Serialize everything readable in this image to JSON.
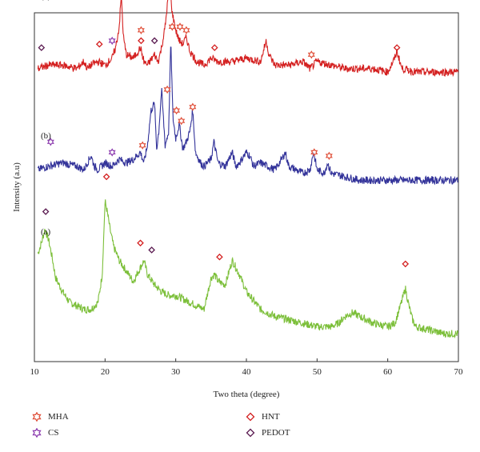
{
  "chart_data": {
    "type": "line",
    "xlabel": "Two theta (degree)",
    "ylabel": "Intensity (a.u)",
    "xlim": [
      10,
      70
    ],
    "xticks": [
      "10",
      "20",
      "30",
      "40",
      "50",
      "60",
      "70"
    ],
    "grid": false,
    "legend_position": "bottom",
    "series": [
      {
        "name": "(a)",
        "color": "#7cbf3a",
        "x": [
          10.5,
          11,
          11.5,
          12,
          12.5,
          13,
          14,
          15,
          16,
          17,
          18,
          19,
          19.6,
          20,
          20.3,
          20.7,
          21.2,
          22,
          23,
          24,
          25,
          25.5,
          26,
          27,
          28,
          29,
          30,
          31,
          32,
          33,
          34,
          35,
          35.5,
          36,
          37,
          38,
          39,
          40,
          42,
          44,
          46,
          48,
          50,
          52,
          53,
          54,
          55,
          56,
          58,
          60,
          61,
          61.8,
          62.5,
          63,
          63.5,
          64,
          66,
          68,
          70
        ],
        "y": [
          0.31,
          0.34,
          0.38,
          0.35,
          0.3,
          0.24,
          0.2,
          0.17,
          0.16,
          0.15,
          0.15,
          0.17,
          0.25,
          0.46,
          0.43,
          0.38,
          0.33,
          0.29,
          0.26,
          0.23,
          0.27,
          0.29,
          0.25,
          0.22,
          0.2,
          0.19,
          0.19,
          0.18,
          0.17,
          0.16,
          0.15,
          0.24,
          0.25,
          0.23,
          0.22,
          0.29,
          0.25,
          0.2,
          0.15,
          0.13,
          0.12,
          0.11,
          0.1,
          0.1,
          0.11,
          0.13,
          0.14,
          0.13,
          0.11,
          0.1,
          0.11,
          0.16,
          0.21,
          0.16,
          0.12,
          0.1,
          0.09,
          0.08,
          0.08
        ]
      },
      {
        "name": "(b)",
        "color": "#33339a",
        "x": [
          10.5,
          12,
          14,
          16,
          17,
          18,
          18.5,
          19,
          20,
          21,
          22,
          23,
          24,
          25,
          25.5,
          26,
          26.5,
          27,
          27.3,
          27.6,
          28,
          28.5,
          29,
          29.3,
          29.6,
          30,
          30.5,
          31,
          31.5,
          32,
          32.4,
          32.8,
          33.5,
          34,
          35,
          35.4,
          36,
          37,
          38,
          38.5,
          39,
          40,
          40.5,
          41,
          42,
          43,
          44,
          45,
          45.5,
          46,
          47,
          48,
          49,
          49.5,
          50,
          51,
          51.5,
          52,
          54,
          56,
          58,
          60,
          62,
          64,
          66,
          68,
          70
        ],
        "y": [
          0.55,
          0.56,
          0.57,
          0.56,
          0.55,
          0.59,
          0.56,
          0.55,
          0.57,
          0.56,
          0.58,
          0.57,
          0.58,
          0.6,
          0.57,
          0.62,
          0.72,
          0.74,
          0.61,
          0.66,
          0.78,
          0.62,
          0.66,
          0.92,
          0.7,
          0.64,
          0.68,
          0.61,
          0.63,
          0.66,
          0.72,
          0.6,
          0.57,
          0.56,
          0.58,
          0.63,
          0.57,
          0.56,
          0.6,
          0.56,
          0.57,
          0.6,
          0.59,
          0.56,
          0.57,
          0.56,
          0.55,
          0.58,
          0.6,
          0.56,
          0.55,
          0.54,
          0.55,
          0.6,
          0.55,
          0.54,
          0.57,
          0.54,
          0.53,
          0.52,
          0.52,
          0.52,
          0.52,
          0.52,
          0.52,
          0.52,
          0.52
        ]
      },
      {
        "name": "(c)",
        "color": "#d42020",
        "x": [
          10.5,
          12,
          14,
          16,
          17,
          17.5,
          18,
          19,
          20,
          21,
          21.5,
          22,
          22.3,
          22.6,
          23,
          24,
          25,
          25.5,
          26,
          27,
          27.5,
          28,
          28.5,
          29,
          29.2,
          29.5,
          30,
          30.5,
          31,
          31.5,
          32,
          33,
          34,
          35,
          36,
          38,
          40,
          42,
          42.8,
          43.2,
          44,
          46,
          48,
          49,
          50,
          52,
          54,
          56,
          58,
          60,
          61,
          61.3,
          62,
          64,
          66,
          68,
          70
        ],
        "y": [
          0.84,
          0.85,
          0.85,
          0.84,
          0.86,
          0.84,
          0.85,
          0.86,
          0.85,
          0.87,
          0.9,
          0.96,
          1.05,
          0.93,
          0.88,
          0.87,
          0.9,
          0.86,
          0.85,
          0.88,
          0.86,
          0.9,
          0.96,
          1.06,
          1.07,
          1.0,
          0.95,
          0.92,
          0.91,
          0.93,
          0.89,
          0.86,
          0.85,
          0.87,
          0.86,
          0.86,
          0.87,
          0.86,
          0.92,
          0.88,
          0.85,
          0.85,
          0.86,
          0.84,
          0.86,
          0.85,
          0.84,
          0.84,
          0.84,
          0.83,
          0.87,
          0.89,
          0.84,
          0.83,
          0.83,
          0.83,
          0.83
        ]
      }
    ],
    "legend": [
      {
        "label": "MHA",
        "symbol": "star",
        "color": "#e0503a"
      },
      {
        "label": "CS",
        "symbol": "star",
        "color": "#8e3fb0"
      },
      {
        "label": "HNT",
        "symbol": "diamond",
        "color": "#d42020"
      },
      {
        "label": "PEDOT",
        "symbol": "diamond",
        "color": "#5a1a50"
      }
    ],
    "markers": [
      {
        "series": "(a)",
        "symbol": "diamond",
        "color": "#5a1a50",
        "x": 11.6,
        "y": 0.43
      },
      {
        "series": "(a)",
        "symbol": "diamond",
        "color": "#d42020",
        "x": 20.2,
        "y": 0.53
      },
      {
        "series": "(a)",
        "symbol": "diamond",
        "color": "#d42020",
        "x": 25.0,
        "y": 0.34
      },
      {
        "series": "(a)",
        "symbol": "diamond",
        "color": "#5a1a50",
        "x": 26.6,
        "y": 0.32
      },
      {
        "series": "(a)",
        "symbol": "diamond",
        "color": "#d42020",
        "x": 36.2,
        "y": 0.3
      },
      {
        "series": "(a)",
        "symbol": "diamond",
        "color": "#d42020",
        "x": 62.5,
        "y": 0.28
      },
      {
        "series": "(b)",
        "symbol": "star",
        "color": "#8e3fb0",
        "x": 12.3,
        "y": 0.63
      },
      {
        "series": "(b)",
        "symbol": "star",
        "color": "#8e3fb0",
        "x": 21.0,
        "y": 0.6
      },
      {
        "series": "(b)",
        "symbol": "star",
        "color": "#e0503a",
        "x": 25.3,
        "y": 0.62
      },
      {
        "series": "(b)",
        "symbol": "star",
        "color": "#e0503a",
        "x": 28.8,
        "y": 0.78
      },
      {
        "series": "(b)",
        "symbol": "star",
        "color": "#e0503a",
        "x": 29.5,
        "y": 0.96
      },
      {
        "series": "(b)",
        "symbol": "star",
        "color": "#e0503a",
        "x": 30.1,
        "y": 0.72
      },
      {
        "series": "(b)",
        "symbol": "star",
        "color": "#e0503a",
        "x": 30.8,
        "y": 0.69
      },
      {
        "series": "(b)",
        "symbol": "star",
        "color": "#e0503a",
        "x": 32.4,
        "y": 0.73
      },
      {
        "series": "(b)",
        "symbol": "star",
        "color": "#e0503a",
        "x": 49.6,
        "y": 0.6
      },
      {
        "series": "(b)",
        "symbol": "star",
        "color": "#e0503a",
        "x": 51.7,
        "y": 0.59
      },
      {
        "series": "(c)",
        "symbol": "diamond",
        "color": "#5a1a50",
        "x": 11.0,
        "y": 0.9
      },
      {
        "series": "(c)",
        "symbol": "diamond",
        "color": "#d42020",
        "x": 19.2,
        "y": 0.91
      },
      {
        "series": "(c)",
        "symbol": "star",
        "color": "#8e3fb0",
        "x": 21.0,
        "y": 0.92
      },
      {
        "series": "(c)",
        "symbol": "star",
        "color": "#e0503a",
        "x": 25.1,
        "y": 0.95
      },
      {
        "series": "(c)",
        "symbol": "diamond",
        "color": "#d42020",
        "x": 25.1,
        "y": 0.92
      },
      {
        "series": "(c)",
        "symbol": "diamond",
        "color": "#5a1a50",
        "x": 27.0,
        "y": 0.92
      },
      {
        "series": "(c)",
        "symbol": "star",
        "color": "#e0503a",
        "x": 29.2,
        "y": 1.1
      },
      {
        "series": "(c)",
        "symbol": "star",
        "color": "#e0503a",
        "x": 30.6,
        "y": 0.96
      },
      {
        "series": "(c)",
        "symbol": "star",
        "color": "#e0503a",
        "x": 31.5,
        "y": 0.95
      },
      {
        "series": "(c)",
        "symbol": "diamond",
        "color": "#d42020",
        "x": 35.5,
        "y": 0.9
      },
      {
        "series": "(c)",
        "symbol": "star",
        "color": "#e0503a",
        "x": 49.2,
        "y": 0.88
      },
      {
        "series": "(c)",
        "symbol": "diamond",
        "color": "#d42020",
        "x": 61.3,
        "y": 0.9
      }
    ]
  }
}
